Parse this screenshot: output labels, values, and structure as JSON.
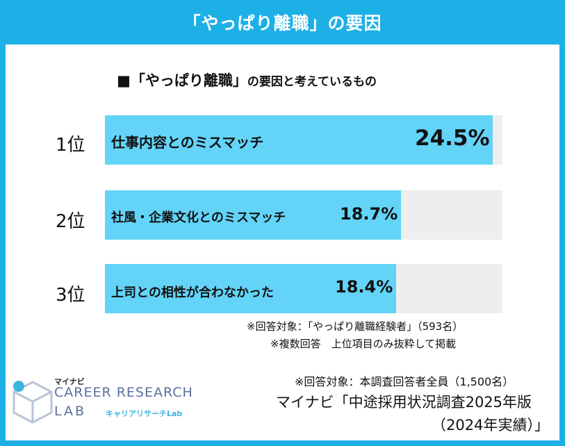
{
  "header": {
    "title": "「やっぱり離職」の要因"
  },
  "subtitle": {
    "main": "■「やっぱり離職」",
    "rest": "の要因と考えているもの"
  },
  "chart_data": {
    "type": "bar",
    "orientation": "horizontal",
    "categories": [
      "仕事内容とのミスマッチ",
      "社風・企業文化とのミスマッチ",
      "上司との相性が合わなかった"
    ],
    "ranks": [
      "1位",
      "2位",
      "3位"
    ],
    "values": [
      24.5,
      18.7,
      18.4
    ],
    "value_labels": [
      "24.5%",
      "18.7%",
      "18.4%"
    ],
    "xlim": [
      0,
      25.1
    ],
    "colors": {
      "bar": "#63d4f8",
      "track": "#eeeeee"
    }
  },
  "notes": {
    "line1": "※回答対象：「やっぱり離職経験者」（593名）",
    "line2": "※複数回答　上位項目のみ抜粋して掲載"
  },
  "footer": {
    "respondents": "※回答対象：本調査回答者全員（1,500名）",
    "source_line1": "マイナビ「中途採用状況調査2025年版",
    "source_line2": "（2024年実績）」"
  },
  "logo": {
    "small": "マイナビ",
    "main": "CAREER RESEARCH",
    "lab": "LAB",
    "kana": "キャリアリサーチLab",
    "colors": {
      "text": "#5a6fa0",
      "accent": "#3fb4e0",
      "cube": "#b8c4d8"
    }
  },
  "colors": {
    "frame": "#1db0e6"
  }
}
